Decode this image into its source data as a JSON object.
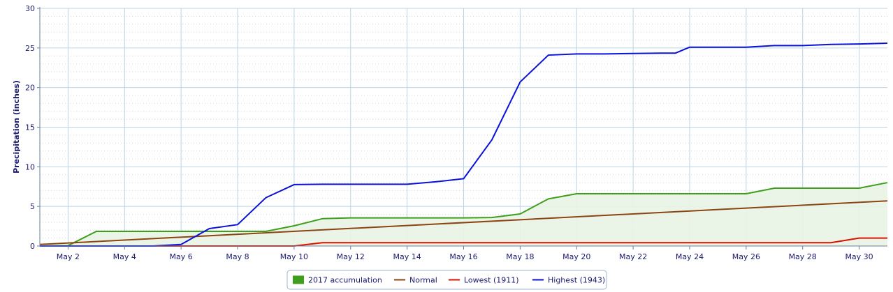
{
  "chart_data": {
    "type": "line",
    "ylabel": "Precipitation (inches)",
    "ylim": [
      0,
      30
    ],
    "yticks": [
      "0",
      "5",
      "10",
      "15",
      "20",
      "25",
      "30"
    ],
    "x_tick_labels": [
      "May 2",
      "May 4",
      "May 6",
      "May 8",
      "May 10",
      "May 12",
      "May 14",
      "May 16",
      "May 18",
      "May 20",
      "May 22",
      "May 24",
      "May 26",
      "May 28",
      "May 30"
    ],
    "x_tick_days": [
      2,
      4,
      6,
      8,
      10,
      12,
      14,
      16,
      18,
      20,
      22,
      24,
      26,
      28,
      30
    ],
    "xlim": [
      1,
      31
    ],
    "grid": true,
    "legend_position": "bottom-center",
    "series": [
      {
        "name": "2017 accumulation",
        "kind": "area",
        "color": "#3f9e1c",
        "fill": "#e9f4e4",
        "x": [
          1,
          2,
          3,
          4,
          5,
          6,
          7,
          8,
          9,
          10,
          11,
          12,
          13,
          14,
          15,
          16,
          17,
          18,
          19,
          20,
          21,
          22,
          23,
          24,
          25,
          26,
          27,
          28,
          29,
          30,
          31
        ],
        "y": [
          0.0,
          0.05,
          1.85,
          1.85,
          1.85,
          1.85,
          1.85,
          1.85,
          1.85,
          2.55,
          3.45,
          3.55,
          3.55,
          3.55,
          3.55,
          3.55,
          3.6,
          4.05,
          5.95,
          6.6,
          6.6,
          6.6,
          6.6,
          6.6,
          6.6,
          6.6,
          7.3,
          7.3,
          7.3,
          7.3,
          8.0
        ]
      },
      {
        "name": "Normal",
        "kind": "line",
        "color": "#8b4513",
        "x": [
          1,
          31
        ],
        "y": [
          0.2,
          5.7
        ]
      },
      {
        "name": "Lowest (1911)",
        "kind": "line",
        "color": "#dd1100",
        "x": [
          1,
          2,
          3,
          4,
          5,
          6,
          7,
          8,
          9,
          10,
          11,
          12,
          13,
          14,
          15,
          16,
          17,
          18,
          19,
          20,
          21,
          22,
          23,
          24,
          25,
          26,
          27,
          28,
          29,
          30,
          31
        ],
        "y": [
          0,
          0,
          0,
          0,
          0,
          0,
          0,
          0,
          0,
          0,
          0.42,
          0.42,
          0.42,
          0.42,
          0.42,
          0.42,
          0.42,
          0.42,
          0.42,
          0.42,
          0.42,
          0.42,
          0.42,
          0.42,
          0.42,
          0.42,
          0.42,
          0.42,
          0.42,
          1.0,
          1.0
        ]
      },
      {
        "name": "Highest (1943)",
        "kind": "line",
        "color": "#0a12d8",
        "x": [
          1,
          2,
          3,
          4,
          5,
          6,
          7,
          8,
          9,
          10,
          11,
          12,
          13,
          14,
          15,
          16,
          17,
          18,
          19,
          20,
          21,
          22,
          23,
          23.5,
          24,
          25,
          26,
          27,
          28,
          29,
          30,
          31
        ],
        "y": [
          0,
          0,
          0,
          0,
          0,
          0.2,
          2.2,
          2.7,
          6.1,
          7.75,
          7.8,
          7.8,
          7.8,
          7.8,
          8.1,
          8.5,
          13.4,
          20.7,
          24.1,
          24.25,
          24.25,
          24.3,
          24.35,
          24.35,
          25.1,
          25.1,
          25.1,
          25.3,
          25.3,
          25.45,
          25.5,
          25.6
        ]
      }
    ]
  }
}
